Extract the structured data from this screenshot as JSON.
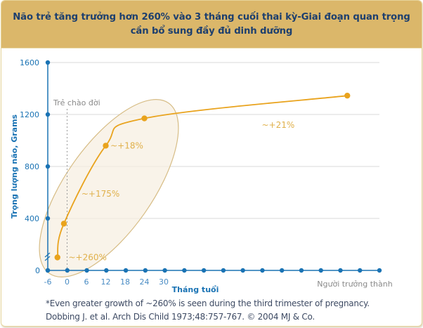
{
  "header": {
    "title_line1": "Não trẻ tăng trưởng hơn 260% vào 3 tháng cuối thai kỳ-Giai đoạn quan trọng",
    "title_line2": "cần bổ sung đầy đủ dinh dưỡng"
  },
  "colors": {
    "header_bg": "#dbb76a",
    "title_text": "#1d3f6e",
    "axis": "#1a73b4",
    "axis_label": "#1a73b4",
    "series": "#e9a31d",
    "ellipse_fill": "#f7efe2",
    "ellipse_stroke": "#d7bd86",
    "grid": "#d9d9d9",
    "annotation": "#e0b04a",
    "muted_text": "#8a8a8a"
  },
  "chart_data": {
    "type": "line",
    "title": "Não trẻ tăng trưởng hơn 260% vào 3 tháng cuối thai kỳ-Giai đoạn quan trọng cần bổ sung đầy đủ dinh dưỡng",
    "xlabel": "Tháng tuổi",
    "ylabel": "Trọng lượng não, Grams",
    "x_ticks": [
      -6,
      0,
      6,
      12,
      18,
      24,
      30
    ],
    "x_tick_labels": [
      "-6",
      "0",
      "6",
      "12",
      "18",
      "24",
      "30"
    ],
    "x_extra_label": "Người trưởng thành",
    "x_dot_count": 18,
    "xlim": [
      -6,
      87
    ],
    "y_ticks": [
      0,
      400,
      800,
      1200,
      1600
    ],
    "y_tick_labels": [
      "0",
      "400",
      "800",
      "1200",
      "1600"
    ],
    "ylim": [
      0,
      1600
    ],
    "grid": "horizontal",
    "axis_break": "y-axis near 100",
    "birth_marker": {
      "x": 0,
      "label": "Trẻ chào đời"
    },
    "series": [
      {
        "name": "Brain weight",
        "points": [
          {
            "x": -3,
            "y": 100
          },
          {
            "x": -1,
            "y": 360
          },
          {
            "x": 12,
            "y": 960
          },
          {
            "x": 24,
            "y": 1170
          },
          {
            "x": 87,
            "y": 1345
          }
        ]
      }
    ],
    "annotations": [
      {
        "text": "~+260%",
        "x": 0,
        "y": 100
      },
      {
        "text": "~+175%",
        "x": 4,
        "y": 590
      },
      {
        "text": "~+18%",
        "x": 13,
        "y": 960
      },
      {
        "text": "~+21%",
        "x": 60,
        "y": 1120
      }
    ],
    "highlight": "ellipse around -6 to 30 months"
  },
  "footnote": {
    "line1": "*Even greater growth of ~260% is seen during the third trimester of pregnancy.",
    "line2": "Dobbing J. et al. Arch Dis Child 1973;48:757-767. © 2004 MJ & Co."
  }
}
